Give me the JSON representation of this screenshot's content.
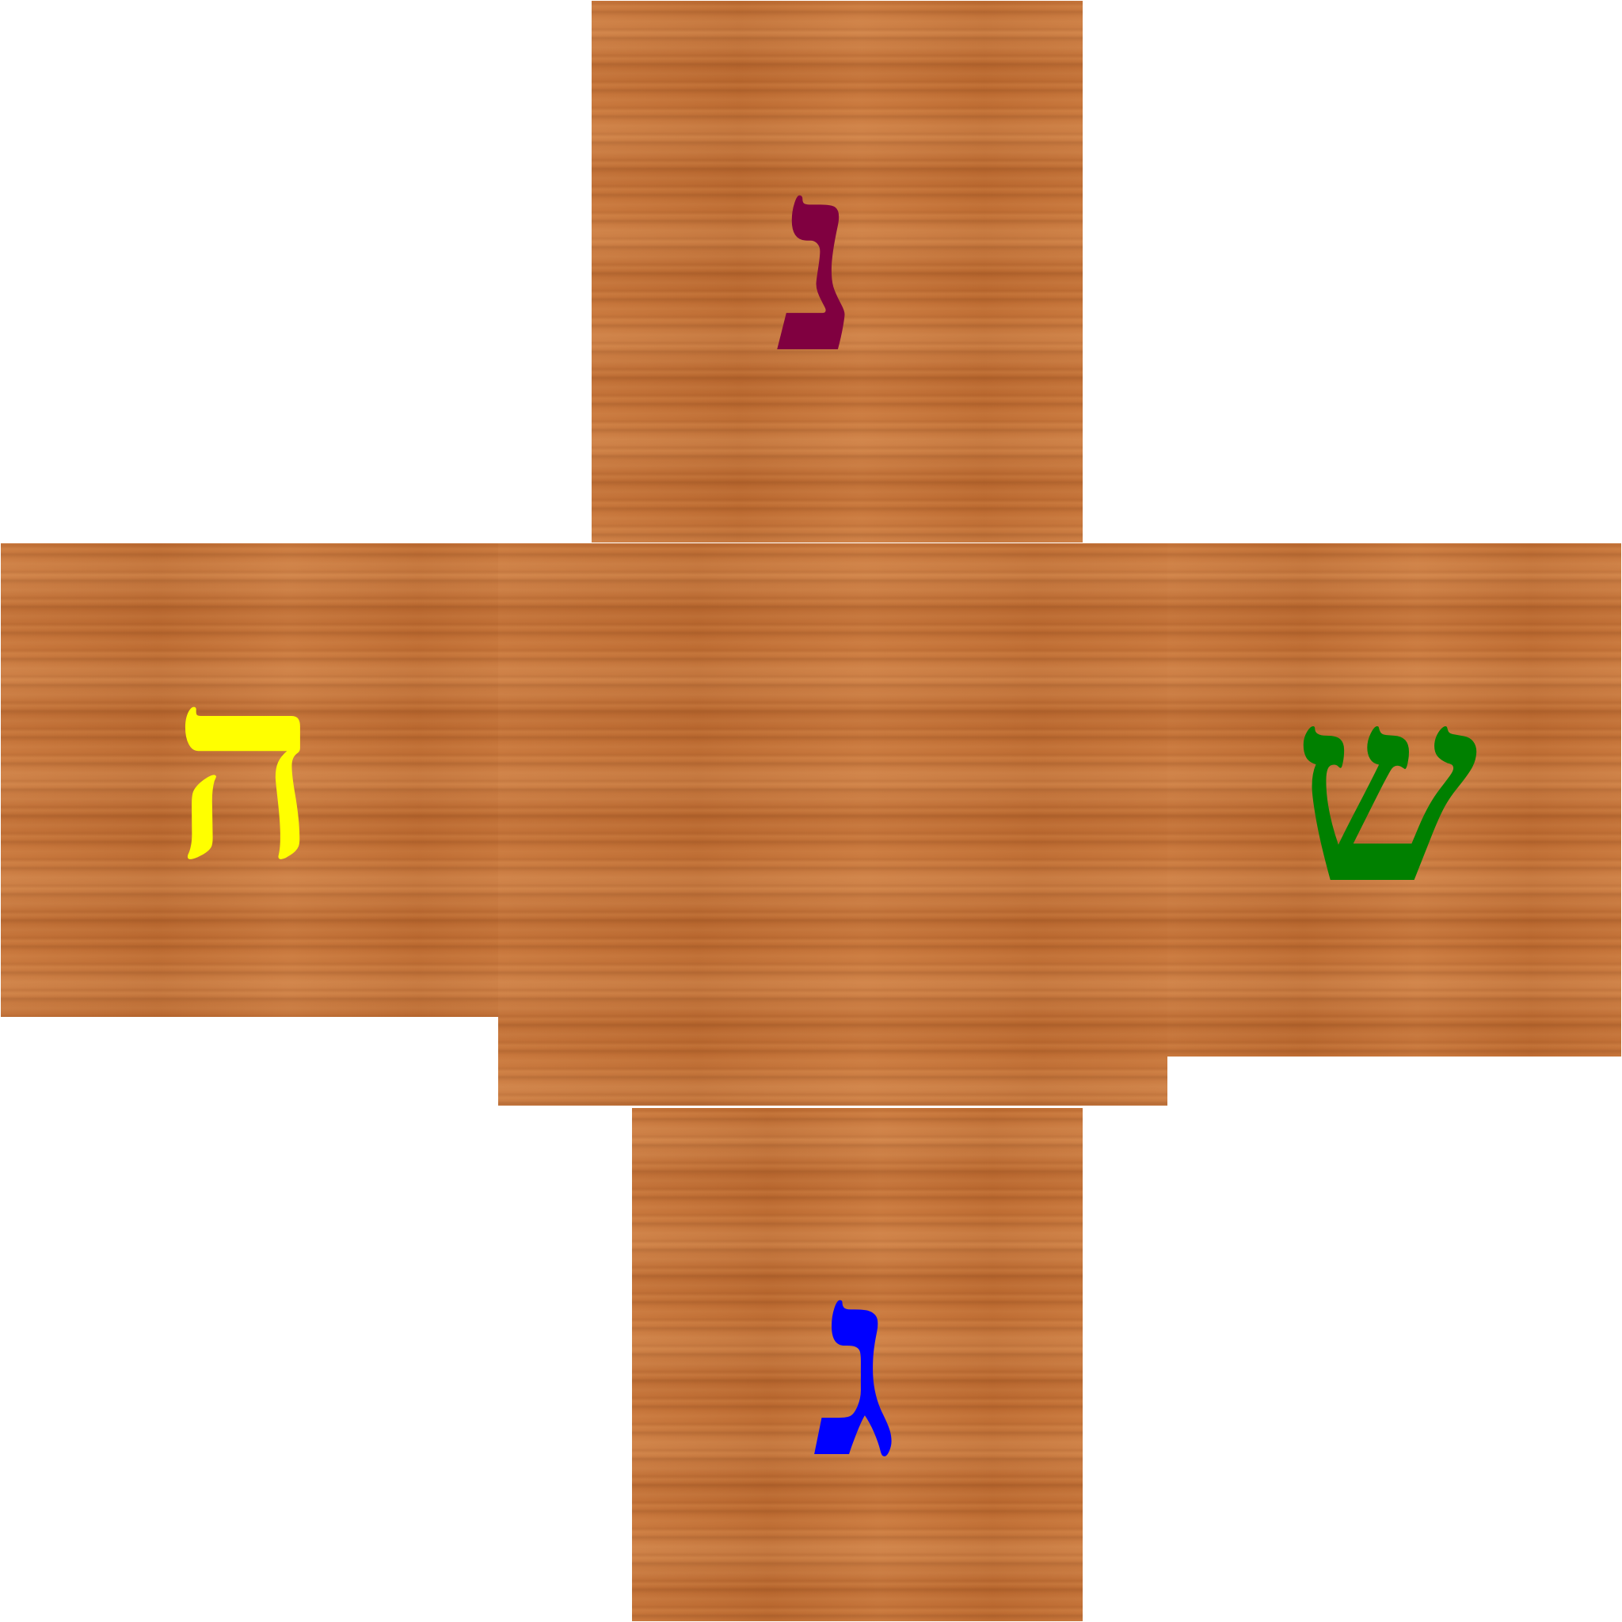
{
  "dreidel": {
    "faces": {
      "top": {
        "letter": "נ",
        "color": "#800040"
      },
      "left": {
        "letter": "ה",
        "color": "#ffff00"
      },
      "right": {
        "letter": "ש",
        "color": "#008000"
      },
      "bottom": {
        "letter": "ג",
        "color": "#0000ff"
      }
    },
    "wood_color": "#c26f34"
  }
}
